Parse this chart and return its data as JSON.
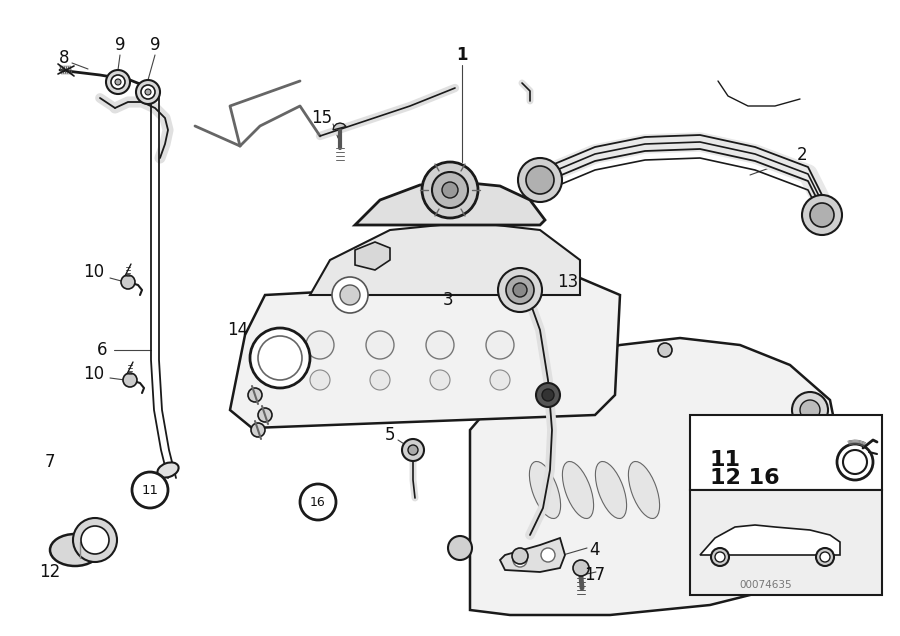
{
  "background_color": "#ffffff",
  "line_color": "#1a1a1a",
  "gray_fill": "#f2f2f2",
  "gray_mid": "#cccccc",
  "gray_dark": "#888888",
  "label_color": "#111111",
  "catalog_number": "00074635",
  "figsize": [
    9.0,
    6.36
  ],
  "dpi": 100
}
